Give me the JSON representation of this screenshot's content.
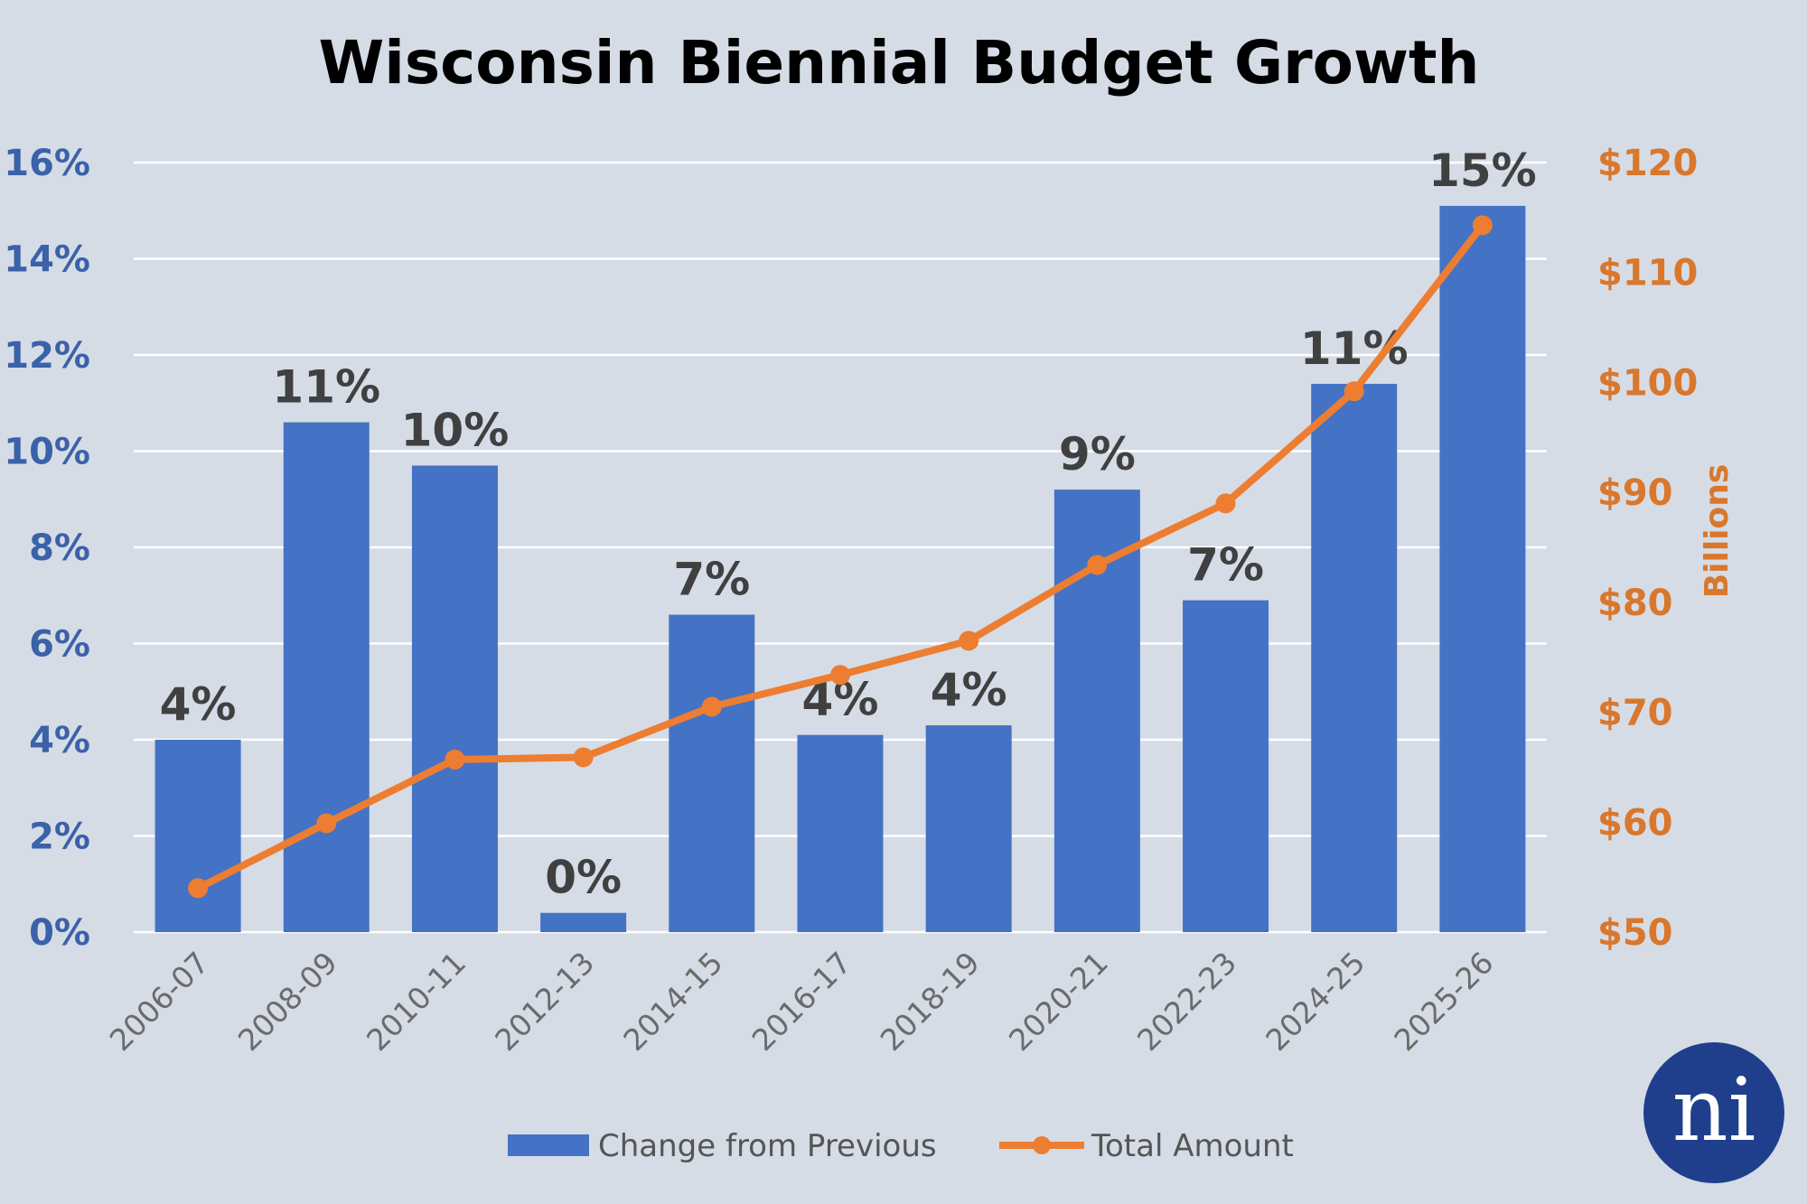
{
  "chart_data": {
    "type": "bar",
    "title": "Wisconsin Biennial Budget Growth",
    "categories": [
      "2006-07",
      "2008-09",
      "2010-11",
      "2012-13",
      "2014-15",
      "2016-17",
      "2018-19",
      "2020-21",
      "2022-23",
      "2024-25",
      "2025-26"
    ],
    "series": [
      {
        "name": "Change from Previous",
        "type": "bar",
        "axis": "left",
        "color": "#4472c4",
        "values": [
          4.0,
          10.6,
          9.7,
          0.4,
          6.6,
          4.1,
          4.3,
          9.2,
          6.9,
          11.4,
          15.1
        ],
        "labels": [
          "4%",
          "11%",
          "10%",
          "0%",
          "7%",
          "4%",
          "4%",
          "9%",
          "7%",
          "11%",
          "15%"
        ]
      },
      {
        "name": "Total Amount",
        "type": "line",
        "axis": "right",
        "color": "#ed7d31",
        "values": [
          54.0,
          59.9,
          65.7,
          65.9,
          70.5,
          73.4,
          76.5,
          83.4,
          89.0,
          99.2,
          114.3
        ]
      }
    ],
    "y_left": {
      "ylim": [
        0,
        16
      ],
      "ticks": [
        "0%",
        "2%",
        "4%",
        "6%",
        "8%",
        "10%",
        "12%",
        "14%",
        "16%"
      ]
    },
    "y_right": {
      "ylim": [
        50,
        120
      ],
      "label": "Billions",
      "ticks": [
        "$50",
        "$60",
        "$70",
        "$80",
        "$90",
        "$100",
        "$110",
        "$120"
      ]
    },
    "grid": true,
    "legend": {
      "position": "bottom",
      "entries": [
        "Change from Previous",
        "Total Amount"
      ]
    }
  },
  "logo": {
    "text": "ni"
  }
}
